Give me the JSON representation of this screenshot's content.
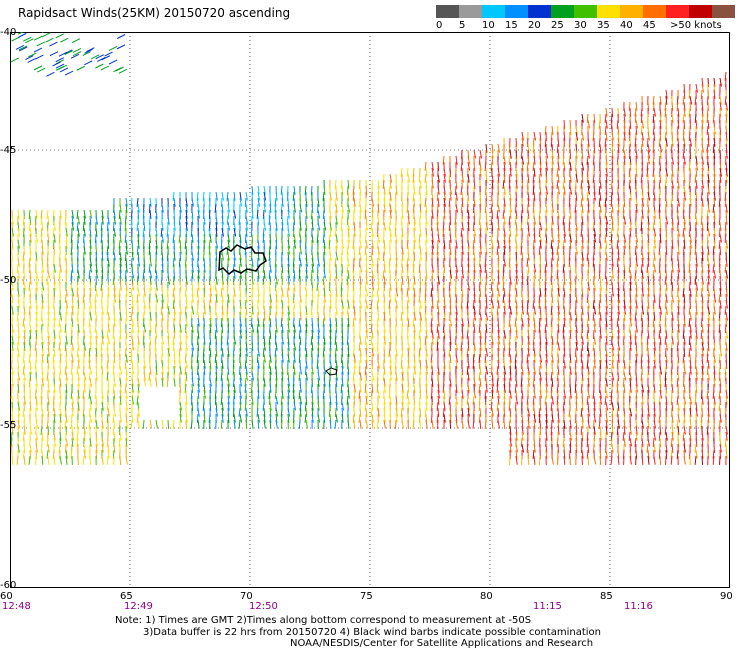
{
  "title": "Rapidsact Winds(25KM) 20150720 ascending",
  "legend": {
    "colors": [
      "#555555",
      "#9a9a9a",
      "#00c8ff",
      "#0090ff",
      "#0030d0",
      "#00a020",
      "#40c000",
      "#ffe000",
      "#ffb000",
      "#ff7000",
      "#ff2020",
      "#c00000",
      "#8a5040",
      "#c08060",
      "#ff00ff",
      "#c000ff",
      "#9000c0",
      "#5000a0"
    ],
    "labels": [
      "0",
      "5",
      "10",
      "15",
      "20",
      "25",
      "30",
      "35",
      "40",
      "45",
      ">50 knots"
    ]
  },
  "axes": {
    "x_ticks": [
      "60",
      "65",
      "70",
      "75",
      "80",
      "85",
      "90"
    ],
    "y_ticks": [
      "-40",
      "-45",
      "-50",
      "-55",
      "-60"
    ]
  },
  "times": [
    "12:48",
    "12:49",
    "12:50",
    "11:15",
    "11:16"
  ],
  "notes": {
    "line1": "Note: 1) Times are GMT 2)Times along bottom correspond to measurement at -50S",
    "line2": "3)Data buffer is 22 hrs from 20150720 4) Black wind barbs indicate possible contamination",
    "line3": "NOAA/NESDIS/Center for Satellite Applications and Research"
  }
}
